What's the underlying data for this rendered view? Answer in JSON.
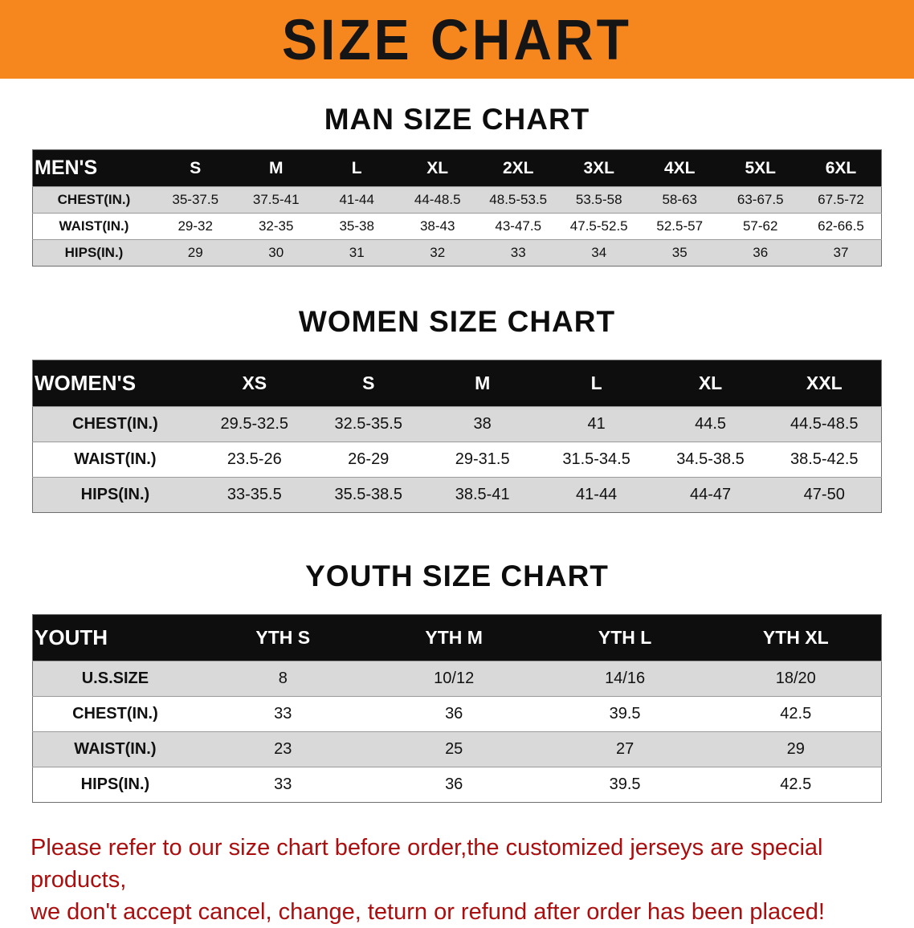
{
  "banner": {
    "title": "SIZE CHART",
    "bg_color": "#f6871f",
    "text_color": "#151515"
  },
  "sections": [
    {
      "heading": "MAN SIZE CHART",
      "table": {
        "corner_label": "MEN'S",
        "columns": [
          "S",
          "M",
          "L",
          "XL",
          "2XL",
          "3XL",
          "4XL",
          "5XL",
          "6XL"
        ],
        "rows": [
          {
            "label": "CHEST(IN.)",
            "values": [
              "35-37.5",
              "37.5-41",
              "41-44",
              "44-48.5",
              "48.5-53.5",
              "53.5-58",
              "58-63",
              "63-67.5",
              "67.5-72"
            ]
          },
          {
            "label": "WAIST(IN.)",
            "values": [
              "29-32",
              "32-35",
              "35-38",
              "38-43",
              "43-47.5",
              "47.5-52.5",
              "52.5-57",
              "57-62",
              "62-66.5"
            ]
          },
          {
            "label": "HIPS(IN.)",
            "values": [
              "29",
              "30",
              "31",
              "32",
              "33",
              "34",
              "35",
              "36",
              "37"
            ]
          }
        ]
      }
    },
    {
      "heading": "WOMEN SIZE CHART",
      "table": {
        "corner_label": "WOMEN'S",
        "columns": [
          "XS",
          "S",
          "M",
          "L",
          "XL",
          "XXL"
        ],
        "rows": [
          {
            "label": "CHEST(IN.)",
            "values": [
              "29.5-32.5",
              "32.5-35.5",
              "38",
              "41",
              "44.5",
              "44.5-48.5"
            ]
          },
          {
            "label": "WAIST(IN.)",
            "values": [
              "23.5-26",
              "26-29",
              "29-31.5",
              "31.5-34.5",
              "34.5-38.5",
              "38.5-42.5"
            ]
          },
          {
            "label": "HIPS(IN.)",
            "values": [
              "33-35.5",
              "35.5-38.5",
              "38.5-41",
              "41-44",
              "44-47",
              "47-50"
            ]
          }
        ]
      }
    },
    {
      "heading": "YOUTH SIZE CHART",
      "table": {
        "corner_label": "YOUTH",
        "columns": [
          "YTH S",
          "YTH M",
          "YTH L",
          "YTH XL"
        ],
        "rows": [
          {
            "label": "U.S.SIZE",
            "values": [
              "8",
              "10/12",
              "14/16",
              "18/20"
            ]
          },
          {
            "label": "CHEST(IN.)",
            "values": [
              "33",
              "36",
              "39.5",
              "42.5"
            ]
          },
          {
            "label": "WAIST(IN.)",
            "values": [
              "23",
              "25",
              "27",
              "29"
            ]
          },
          {
            "label": "HIPS(IN.)",
            "values": [
              "33",
              "36",
              "39.5",
              "42.5"
            ]
          }
        ]
      }
    }
  ],
  "disclaimer": {
    "line1": "Please refer to our size chart before order,the customized jerseys are special products,",
    "line2": "we don't accept cancel, change, teturn or refund after order has been placed!",
    "color": "#ab0e0e"
  }
}
